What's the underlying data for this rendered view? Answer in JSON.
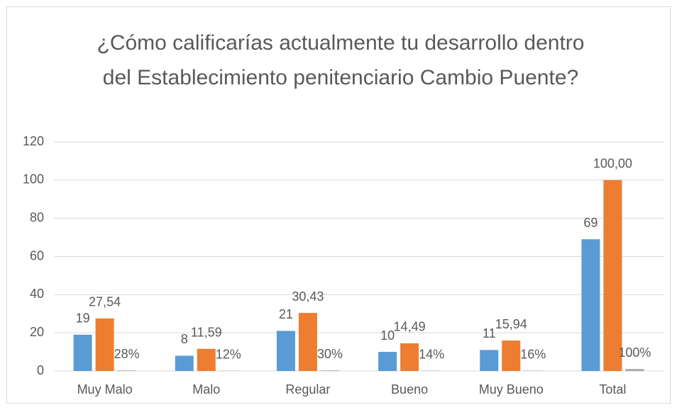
{
  "chart_data": {
    "type": "bar",
    "title": "¿Cómo calificarías actualmente tu desarrollo dentro del Establecimiento penitenciario Cambio Puente?",
    "categories": [
      "Muy Malo",
      "Malo",
      "Regular",
      "Bueno",
      "Muy Bueno",
      "Total"
    ],
    "series": [
      {
        "color": "#5b9bd5",
        "values": [
          19,
          8,
          21,
          10,
          11,
          69
        ]
      },
      {
        "color": "#ed7d31",
        "values": [
          27.54,
          11.59,
          30.43,
          14.49,
          15.94,
          100.0
        ],
        "value_labels": [
          "27,54",
          "11,59",
          "30,43",
          "14,49",
          "15,94",
          "100,00"
        ]
      },
      {
        "color": "#a5a5a5",
        "values": [
          0.28,
          0.12,
          0.3,
          0.14,
          0.16,
          1.0
        ],
        "value_labels": [
          "28%",
          "12%",
          "30%",
          "14%",
          "16%",
          "100%"
        ]
      }
    ],
    "ylim": [
      0,
      120
    ],
    "yticks": [
      0,
      20,
      40,
      60,
      80,
      100,
      120
    ],
    "grid": true
  }
}
